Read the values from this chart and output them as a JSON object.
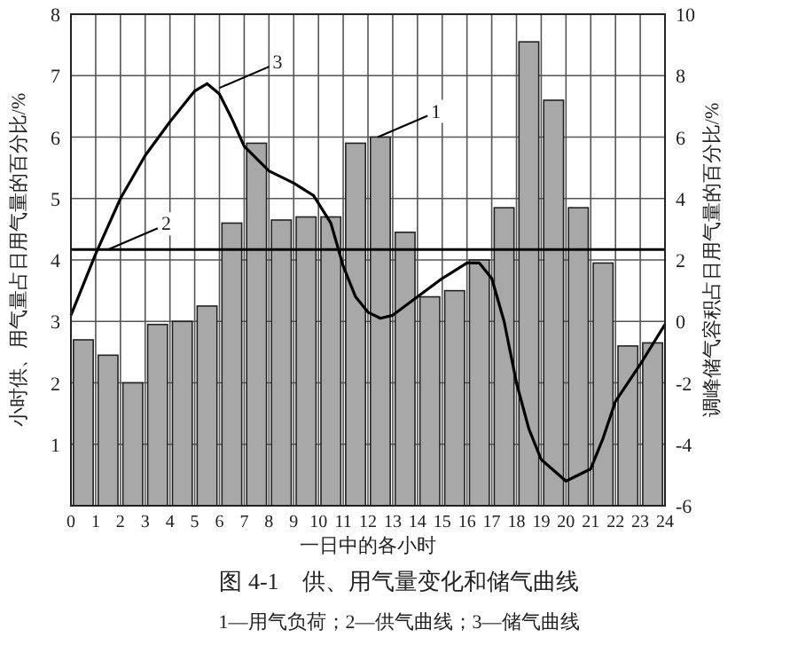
{
  "chart_data": {
    "type": "bar",
    "title": "图 4-1　供、用气量变化和储气曲线",
    "subtitle": "1—用气负荷；2—供气曲线；3—储气曲线",
    "xlabel": "一日中的各小时",
    "ylabel": "小时供、用气量占日用气量的百分比/%",
    "y2label": "调峰储气容积占日用气量的百分比/%",
    "xlim": [
      0,
      24
    ],
    "xticks": [
      0,
      1,
      2,
      3,
      4,
      5,
      6,
      7,
      8,
      9,
      10,
      11,
      12,
      13,
      14,
      15,
      16,
      17,
      18,
      19,
      20,
      21,
      22,
      23,
      24
    ],
    "ylim": [
      0,
      8
    ],
    "yticks": [
      {
        "value": 0,
        "label": null
      },
      1,
      2,
      3,
      4,
      5,
      6,
      7,
      8
    ],
    "y2lim": [
      -6,
      10
    ],
    "y2ticks": [
      -6,
      -4,
      -2,
      0,
      2,
      4,
      6,
      8,
      10
    ],
    "grid": true,
    "series": [
      {
        "color": "#a8a8a8",
        "x": [
          0.5,
          1.5,
          2.5,
          3.5,
          4.5,
          5.5,
          6.5,
          7.5,
          8.5,
          9.5,
          10.5,
          11.5,
          12.5,
          13.5,
          14.5,
          15.5,
          16.5,
          17.5,
          18.5,
          19.5,
          20.5,
          21.5,
          22.5,
          23.5
        ],
        "values": [
          2.7,
          2.45,
          2.0,
          2.95,
          3.0,
          3.25,
          4.6,
          5.9,
          4.65,
          4.7,
          4.7,
          5.9,
          6.0,
          4.45,
          3.4,
          3.5,
          4.0,
          4.85,
          7.55,
          6.6,
          4.85,
          3.95,
          2.6,
          2.65
        ]
      },
      {
        "type": "line",
        "color": "#000000",
        "x": [
          0,
          24
        ],
        "values": [
          4.17,
          4.17
        ]
      },
      {
        "type": "line",
        "color": "#000000",
        "axis": "y2",
        "x": [
          0,
          1,
          2,
          3,
          4,
          5,
          5.5,
          6,
          6.5,
          7,
          8,
          9,
          9.8,
          10.5,
          11,
          11.5,
          12,
          12.5,
          13,
          14,
          15,
          16,
          16.5,
          17,
          17.5,
          18,
          18.5,
          19,
          20,
          21,
          21.5,
          22,
          23,
          24
        ],
        "values": [
          0.2,
          2.2,
          4.0,
          5.4,
          6.5,
          7.5,
          7.74,
          7.4,
          6.6,
          5.7,
          4.9,
          4.5,
          4.1,
          3.2,
          1.8,
          0.8,
          0.3,
          0.1,
          0.2,
          0.8,
          1.4,
          1.9,
          1.9,
          1.4,
          0,
          -2,
          -3.5,
          -4.5,
          -5.2,
          -4.8,
          -3.8,
          -2.6,
          -1.4,
          -0.1
        ]
      }
    ],
    "annotations": [
      {
        "text": "1",
        "x": 12.4,
        "y": 6.0
      },
      {
        "text": "2",
        "x": 1.5,
        "y": 4.17
      },
      {
        "text": "3",
        "x": 6,
        "y": 6.8
      }
    ]
  }
}
